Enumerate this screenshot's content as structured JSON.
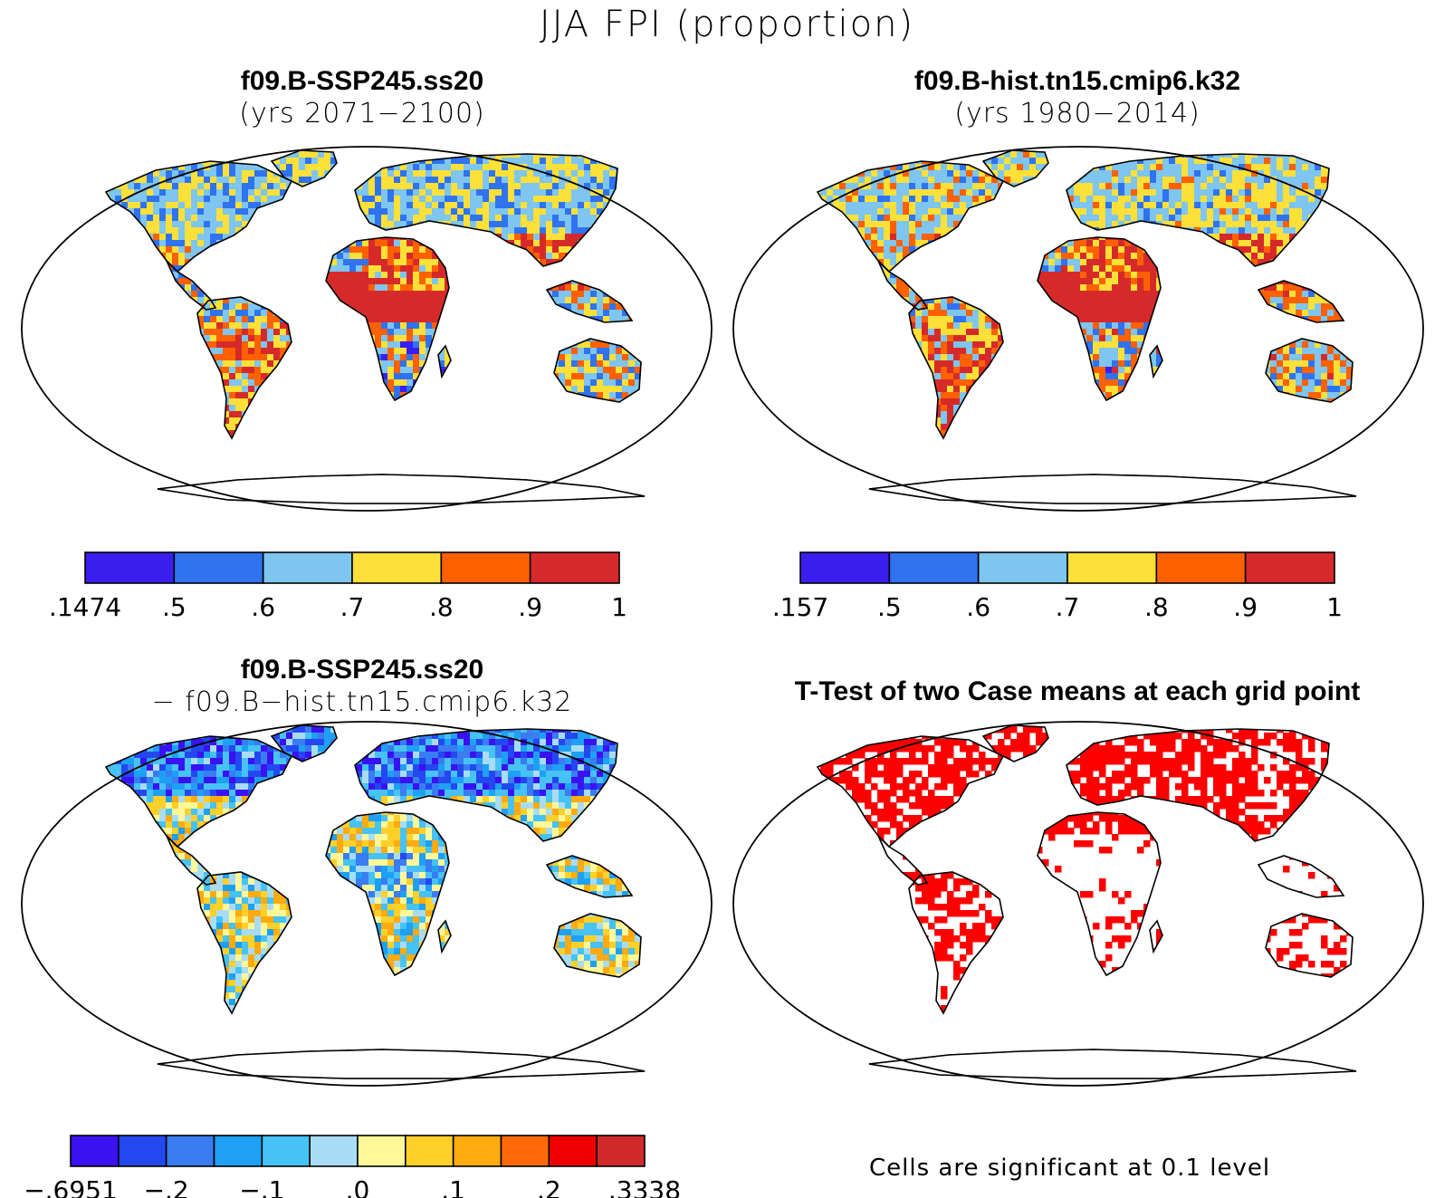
{
  "title": "JJA FPI (proportion)",
  "colors": {
    "six_class": [
      "#3a1ef0",
      "#2f73f0",
      "#7ec5f0",
      "#ffe038",
      "#ff6000",
      "#d62a2a"
    ],
    "diff_class": [
      "#3a12f2",
      "#2448f0",
      "#3a7cf2",
      "#1ea0f4",
      "#46c2f4",
      "#a8dcf4",
      "#fff79a",
      "#ffd02a",
      "#ffaa10",
      "#ff6a08",
      "#f00000",
      "#d22a2a"
    ],
    "significant": "#ff0000",
    "coast": "#000000"
  },
  "panels": [
    {
      "id": "ssp245",
      "title_line1": "f09.B-SSP245.ss20",
      "title_line2": "(yrs 2071−2100)",
      "colorbar": {
        "ticks": [
          ".1474",
          ".5",
          ".6",
          ".7",
          ".8",
          ".9",
          "1"
        ]
      }
    },
    {
      "id": "hist",
      "title_line1": "f09.B-hist.tn15.cmip6.k32",
      "title_line2": "(yrs 1980−2014)",
      "colorbar": {
        "ticks": [
          ".157",
          ".5",
          ".6",
          ".7",
          ".8",
          ".9",
          "1"
        ]
      }
    },
    {
      "id": "diff",
      "title_line1": "f09.B-SSP245.ss20",
      "title_line2": "− f09.B−hist.tn15.cmip6.k32",
      "colorbar": {
        "ticks": [
          "−.6951",
          "−.2",
          "−.1",
          ".0",
          ".1",
          ".2",
          ".3338"
        ]
      }
    },
    {
      "id": "ttest",
      "title_line1": "T-Test of two Case means at each grid point",
      "note": "Cells are significant at 0.1 level"
    }
  ]
}
